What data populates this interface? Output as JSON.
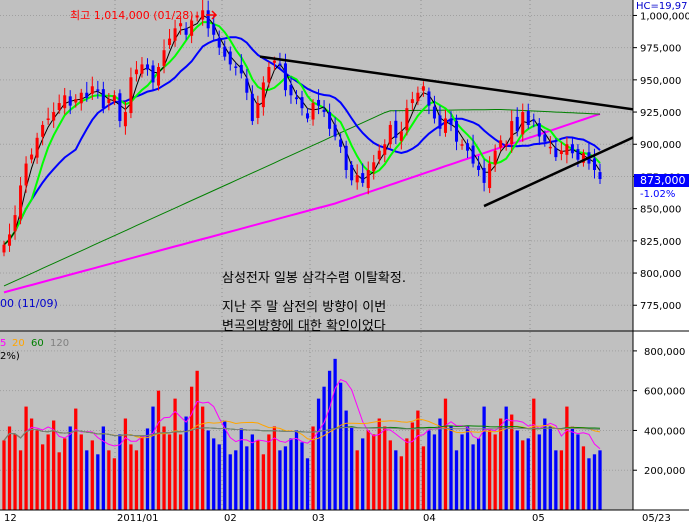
{
  "chart_data": [
    {
      "type": "candlestick",
      "panel": "price",
      "title": "",
      "y_ticks": [
        "1,000,000",
        "975,000",
        "950,000",
        "925,000",
        "900,000",
        "875,000",
        "850,000",
        "825,000",
        "800,000",
        "775,000"
      ],
      "y_tick_values": [
        1000000,
        975000,
        950000,
        925000,
        900000,
        875000,
        850000,
        825000,
        800000,
        775000
      ],
      "ylim": [
        755000,
        1012000
      ],
      "top_partial_label": "HC=19,97",
      "current_price_label": "873,000",
      "change_label": "-1.02%",
      "high_annotation": "최고 1,014,000 (01/28)",
      "low_annotation": "00 (11/09)",
      "annotations": [
        "삼성전자 일봉 삼각수렴 이탈확정.",
        "지난 주 말  삼전의 방향이 이번",
        "변곡의방향에 대한 확인이었다"
      ],
      "colors": {
        "up": "#ff0000",
        "down": "#0000ff",
        "ma5": "#000000",
        "ma20": "#00ff00",
        "ma60": "#0000ff",
        "ma120": "#008000",
        "ma240": "#ff00ff",
        "trendline": "#000000"
      },
      "grid": true,
      "close_sample": [
        822000,
        830000,
        845000,
        868000,
        885000,
        892000,
        905000,
        915000,
        920000,
        925000,
        932000,
        938000,
        930000,
        935000,
        940000,
        936000,
        945000,
        942000,
        928000,
        935000,
        938000,
        918000,
        925000,
        952000,
        958000,
        962000,
        958000,
        948000,
        960000,
        973000,
        982000,
        990000,
        994000,
        985000,
        996000,
        1000000,
        1004000,
        990000,
        985000,
        975000,
        968000,
        962000,
        960000,
        955000,
        940000,
        918000,
        932000,
        948000,
        960000,
        965000,
        962000,
        942000,
        938000,
        935000,
        928000,
        920000,
        932000,
        930000,
        925000,
        912000,
        906000,
        898000,
        880000,
        872000,
        876000,
        870000,
        880000,
        886000,
        895000,
        900000,
        915000,
        905000,
        910000,
        928000,
        935000,
        940000,
        945000,
        930000,
        920000,
        912000,
        920000,
        915000,
        902000,
        900000,
        895000,
        885000,
        880000,
        870000,
        885000,
        895000,
        903000,
        900000,
        918000,
        910000,
        925000,
        915000,
        918000,
        906000,
        902000,
        898000,
        890000,
        895000,
        900000,
        893000,
        888000,
        893000,
        885000,
        880000,
        873000
      ]
    },
    {
      "type": "bar",
      "panel": "volume",
      "legend": [
        "5",
        "20",
        "60",
        "120"
      ],
      "legend_colors": [
        "#ff00ff",
        "#ffa500",
        "#008000",
        "#808080"
      ],
      "sublegend": "2%)",
      "y_ticks": [
        "800,000",
        "600,000",
        "400,000",
        "200,000"
      ],
      "y_tick_values": [
        800000,
        600000,
        400000,
        200000
      ],
      "ylim": [
        0,
        900000
      ],
      "values_sample": [
        350000,
        420000,
        380000,
        300000,
        520000,
        460000,
        400000,
        330000,
        380000,
        450000,
        290000,
        360000,
        420000,
        510000,
        380000,
        300000,
        350000,
        280000,
        420000,
        300000,
        260000,
        380000,
        460000,
        330000,
        300000,
        370000,
        410000,
        520000,
        600000,
        420000,
        380000,
        560000,
        380000,
        470000,
        620000,
        700000,
        520000,
        400000,
        360000,
        330000,
        450000,
        280000,
        300000,
        410000,
        320000,
        380000,
        350000,
        280000,
        380000,
        420000,
        300000,
        320000,
        360000,
        400000,
        340000,
        260000,
        420000,
        560000,
        620000,
        700000,
        760000,
        640000,
        500000,
        420000,
        300000,
        360000,
        400000,
        380000,
        460000,
        420000,
        350000,
        300000,
        270000,
        360000,
        440000,
        500000,
        320000,
        400000,
        380000,
        460000,
        560000,
        420000,
        300000,
        380000,
        420000,
        330000,
        360000,
        520000,
        400000,
        380000,
        460000,
        520000,
        480000,
        400000,
        350000,
        360000,
        560000,
        380000,
        460000,
        420000,
        300000,
        300000,
        520000,
        420000,
        380000,
        320000,
        260000,
        280000,
        300000
      ]
    }
  ],
  "x_axis": {
    "labels": [
      "12",
      "2011/01",
      "02",
      "03",
      "04",
      "05",
      "05/23"
    ]
  }
}
